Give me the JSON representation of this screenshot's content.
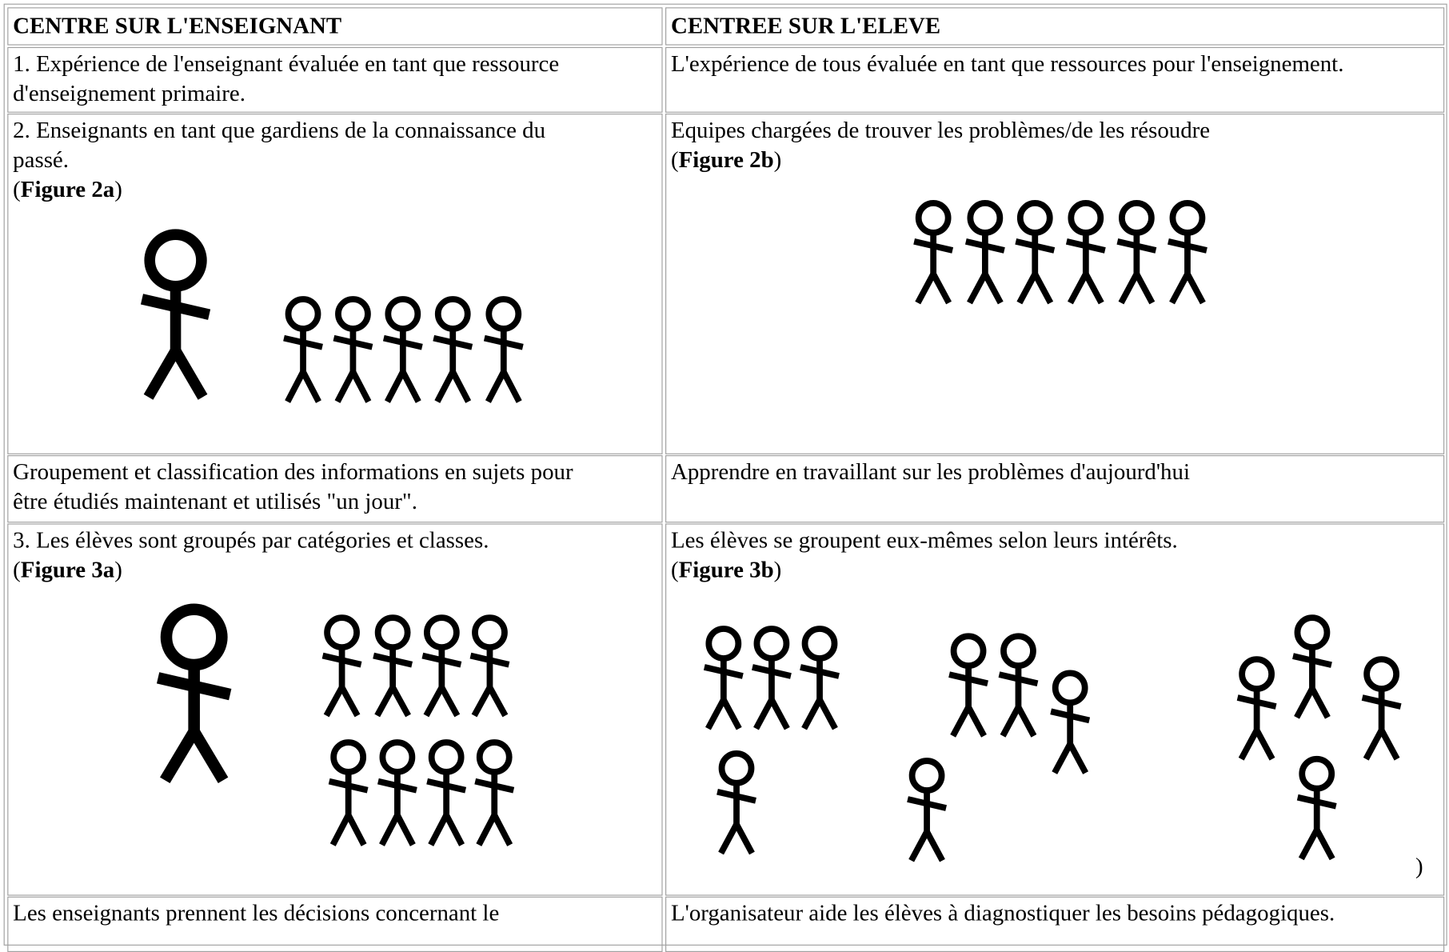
{
  "header": [
    "CENTRE SUR L'ENSEIGNANT",
    "CENTREE SUR L'ELEVE"
  ],
  "rows": [
    {
      "left": {
        "lines": [
          "1. Expérience de l'enseignant évaluée en tant que ressource",
          "d'enseignement primaire."
        ]
      },
      "right": {
        "lines": [
          "L'expérience de tous évaluée en tant que ressources pour l'enseignement."
        ]
      }
    },
    {
      "left": {
        "lines": [
          "2. Enseignants en tant que gardiens de la connaissance du",
          "passé."
        ],
        "figure": [
          "(",
          "Figure 2a",
          ")"
        ]
      },
      "right": {
        "lines": [
          "Equipes chargées de trouver les problèmes/de les résoudre"
        ],
        "figure": [
          "(",
          "Figure 2b",
          ")"
        ]
      }
    },
    {
      "left": {
        "lines": [
          "Groupement et classification des informations en sujets pour",
          "être étudiés maintenant et utilisés \"un jour\"."
        ]
      },
      "right": {
        "lines": [
          "Apprendre en travaillant sur les problèmes d'aujourd'hui"
        ]
      }
    },
    {
      "left": {
        "lines": [
          "3. Les élèves sont groupés par catégories et classes."
        ],
        "figure": [
          "(",
          "Figure 3a",
          ")"
        ]
      },
      "right": {
        "lines": [
          "Les élèves se groupent eux-mêmes selon leurs intérêts."
        ],
        "figure": [
          "(",
          "Figure 3b",
          ")"
        ],
        "stray": ")"
      }
    },
    {
      "left": {
        "lines": [
          "Les enseignants prennent les décisions concernant le"
        ]
      },
      "right": {
        "lines": [
          "L'organisateur aide les élèves à diagnostiquer les besoins pédagogiques."
        ]
      }
    }
  ]
}
